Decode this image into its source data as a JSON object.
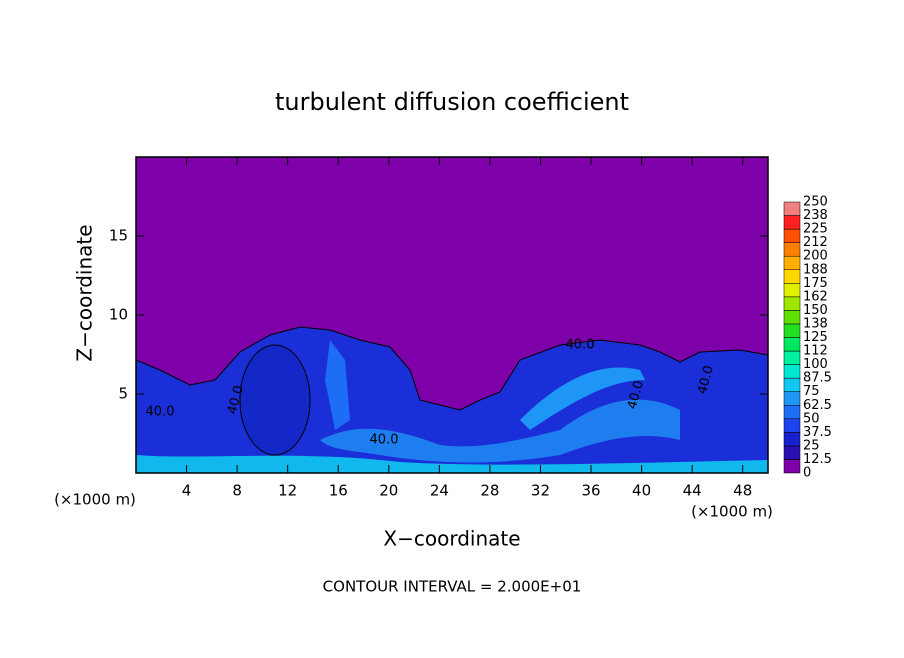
{
  "chart_data": {
    "type": "contour",
    "title": "turbulent diffusion coefficient",
    "xlabel": "X−coordinate",
    "ylabel": "Z−coordinate",
    "x_unit_left": "(×1000 m)",
    "x_unit_right": "(×1000 m)",
    "footer": "CONTOUR INTERVAL = 2.000E+01",
    "xlim": [
      0,
      50
    ],
    "xticks": [
      4,
      8,
      12,
      16,
      20,
      24,
      28,
      32,
      36,
      40,
      44,
      48
    ],
    "ylim": [
      0,
      20
    ],
    "yticks": [
      5,
      10,
      15
    ],
    "contour_labels": [
      "40.0",
      "40.0",
      "40.0",
      "40.0",
      "40.0",
      "40.0"
    ],
    "colorbar": {
      "ticks": [
        0,
        12.5,
        25,
        37.5,
        50,
        62.5,
        75,
        87.5,
        100,
        {
          "value": 112.5,
          "label": "112"
        },
        125,
        {
          "value": 137.5,
          "label": "138"
        },
        150,
        {
          "value": 162.5,
          "label": "162"
        },
        175,
        {
          "value": 187.5,
          "label": "188"
        },
        200,
        {
          "value": 212.5,
          "label": "212"
        },
        225,
        {
          "value": 237.5,
          "label": "238"
        },
        250
      ],
      "colors": [
        "#7d00a8",
        "#2a10b0",
        "#1a22d0",
        "#1d44f0",
        "#1e6ef5",
        "#1e96f5",
        "#10c8f0",
        "#00e8d0",
        "#00f0a0",
        "#00e860",
        "#20e020",
        "#60e000",
        "#a0e800",
        "#e0f000",
        "#ffd800",
        "#ffb000",
        "#ff8000",
        "#ff5000",
        "#ff2020",
        "#f08080"
      ]
    }
  }
}
